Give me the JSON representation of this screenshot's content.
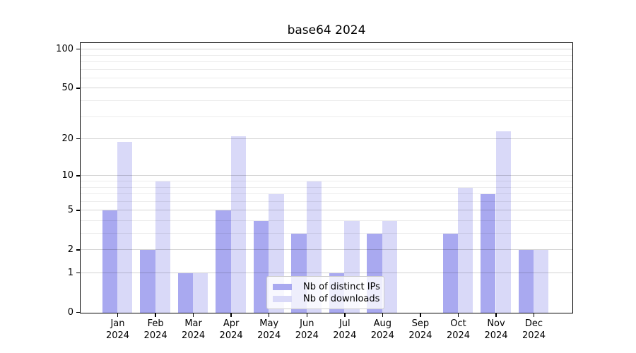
{
  "title": "base64 2024",
  "chart_data": {
    "type": "bar",
    "title": "base64 2024",
    "categories": [
      "Jan",
      "Feb",
      "Mar",
      "Apr",
      "May",
      "Jun",
      "Jul",
      "Aug",
      "Sep",
      "Oct",
      "Nov",
      "Dec"
    ],
    "year_label": "2024",
    "series": [
      {
        "name": "Nb of distinct IPs",
        "color": "#a9a9f0",
        "values": [
          5,
          2,
          1,
          5,
          4,
          3,
          1,
          3,
          0,
          3,
          7,
          2
        ]
      },
      {
        "name": "Nb of downloads",
        "color": "#d9d9f8",
        "values": [
          19,
          9,
          1,
          21,
          7,
          9,
          4,
          4,
          0,
          8,
          23,
          2
        ]
      }
    ],
    "y_scale": "log1p",
    "y_ticks": [
      0,
      1,
      2,
      5,
      10,
      20,
      50,
      100
    ],
    "y_minor_gridlines": [
      3,
      4,
      6,
      7,
      8,
      9,
      30,
      40,
      60,
      70,
      80,
      90
    ],
    "ylim": [
      0,
      112
    ],
    "grid": true,
    "legend": {
      "position": "lower center",
      "entries": [
        "Nb of distinct IPs",
        "Nb of downloads"
      ]
    },
    "colors": {
      "axis": "#000000",
      "text": "#000000",
      "grid_major": "#d4d4d4",
      "grid_minor": "#ececec",
      "background": "#ffffff"
    }
  }
}
